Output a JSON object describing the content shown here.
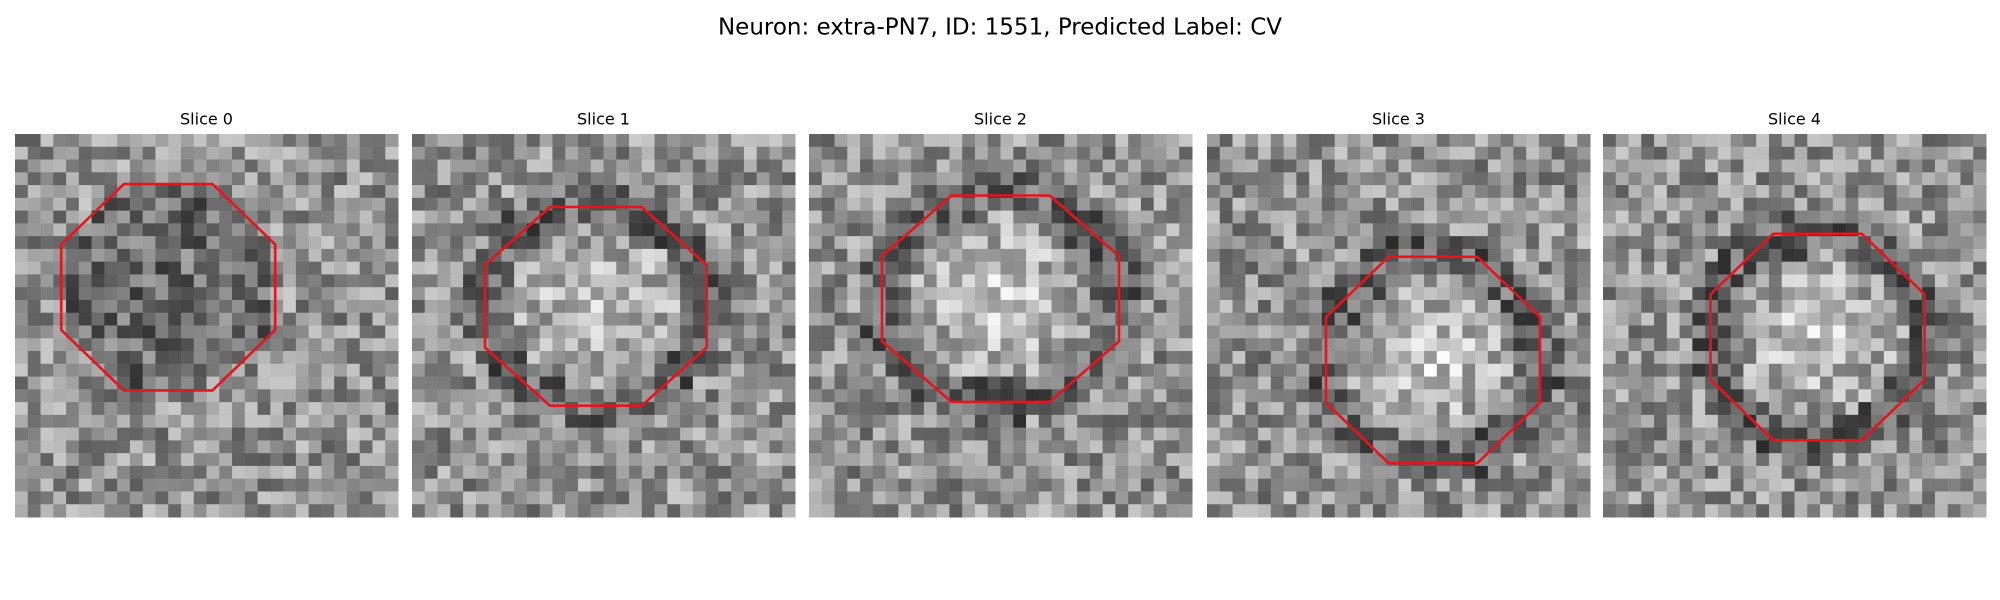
{
  "title": "Neuron: extra-PN7, ID: 1551, Predicted Label: CV",
  "panels": [
    {
      "title": "Slice 0"
    },
    {
      "title": "Slice 1"
    },
    {
      "title": "Slice 2"
    },
    {
      "title": "Slice 3"
    },
    {
      "title": "Slice 4"
    }
  ]
}
